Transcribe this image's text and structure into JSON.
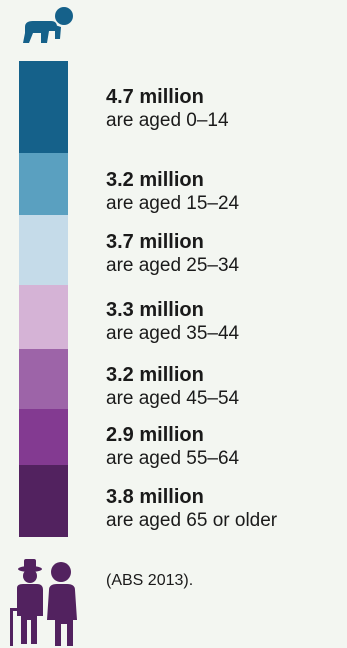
{
  "infographic": {
    "icon_top": "baby-crawling-icon",
    "icon_bottom": "elderly-couple-icon",
    "groups": [
      {
        "value": "4.7 million",
        "desc": "are aged 0–14",
        "color": "#15618a"
      },
      {
        "value": "3.2 million",
        "desc": "are aged 15–24",
        "color": "#5aa0c0"
      },
      {
        "value": "3.7 million",
        "desc": "are aged 25–34",
        "color": "#c5dbe9"
      },
      {
        "value": "3.3 million",
        "desc": "are aged 35–44",
        "color": "#d5b3d6"
      },
      {
        "value": "3.2 million",
        "desc": "are aged 45–54",
        "color": "#9d64a8"
      },
      {
        "value": "2.9 million",
        "desc": "are aged 55–64",
        "color": "#833a91"
      },
      {
        "value": "3.8 million",
        "desc": "are aged 65 or older",
        "color": "#52225f"
      }
    ],
    "source": "(ABS 2013).",
    "icon_colors": {
      "baby": "#15618a",
      "elders": "#52225f"
    }
  }
}
